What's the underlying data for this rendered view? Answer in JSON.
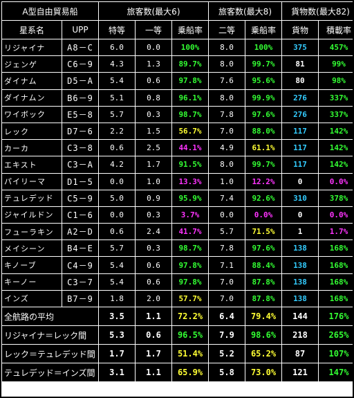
{
  "title": "A型自由貿易船",
  "groups": {
    "passenger1": "旅客数(最大6)",
    "passenger2": "旅客数(最大8)",
    "cargo": "貨物数(最大82)"
  },
  "headers": {
    "system": "星系名",
    "upp": "UPP",
    "special": "特等",
    "first": "一等",
    "rate1": "乗船率",
    "second": "二等",
    "rate2": "乗船率",
    "cargo": "貨物",
    "loadrate": "積載率"
  },
  "colors": {
    "green": "#33ff33",
    "yellow": "#ffff33",
    "magenta": "#ff33ff",
    "cyan": "#33ccff"
  },
  "rows": [
    {
      "name": "リジャイナ",
      "upp": "A8－C",
      "special": "6.0",
      "first": "0.0",
      "rate1": "100%",
      "rate1_color": "g",
      "second": "8.0",
      "rate2": "100%",
      "rate2_color": "g",
      "cargo": "375",
      "cargo_color": "cy",
      "load": "457%",
      "load_color": "g"
    },
    {
      "name": "ジェンゲ",
      "upp": "C6－9",
      "special": "4.3",
      "first": "1.3",
      "rate1": "89.7%",
      "rate1_color": "g",
      "second": "8.0",
      "rate2": "99.7%",
      "rate2_color": "g",
      "cargo": "81",
      "cargo_color": "w",
      "load": "99%",
      "load_color": "g"
    },
    {
      "name": "ダイナム",
      "upp": "D5－A",
      "special": "5.4",
      "first": "0.6",
      "rate1": "97.8%",
      "rate1_color": "g",
      "second": "7.6",
      "rate2": "95.6%",
      "rate2_color": "g",
      "cargo": "80",
      "cargo_color": "w",
      "load": "98%",
      "load_color": "g"
    },
    {
      "name": "ダイナムン",
      "upp": "B6－9",
      "special": "5.1",
      "first": "0.8",
      "rate1": "96.1%",
      "rate1_color": "g",
      "second": "8.0",
      "rate2": "99.9%",
      "rate2_color": "g",
      "cargo": "276",
      "cargo_color": "cy",
      "load": "337%",
      "load_color": "g"
    },
    {
      "name": "ワイボック",
      "upp": "E5－8",
      "special": "5.7",
      "first": "0.3",
      "rate1": "98.7%",
      "rate1_color": "g",
      "second": "7.8",
      "rate2": "97.6%",
      "rate2_color": "g",
      "cargo": "276",
      "cargo_color": "cy",
      "load": "337%",
      "load_color": "g"
    },
    {
      "name": "レック",
      "upp": "D7－6",
      "special": "2.2",
      "first": "1.5",
      "rate1": "56.7%",
      "rate1_color": "y",
      "second": "7.0",
      "rate2": "88.0%",
      "rate2_color": "g",
      "cargo": "117",
      "cargo_color": "cy",
      "load": "142%",
      "load_color": "g"
    },
    {
      "name": "カーカ",
      "upp": "C3－8",
      "special": "0.6",
      "first": "2.5",
      "rate1": "44.1%",
      "rate1_color": "m",
      "second": "4.9",
      "rate2": "61.1%",
      "rate2_color": "y",
      "cargo": "117",
      "cargo_color": "cy",
      "load": "142%",
      "load_color": "g"
    },
    {
      "name": "エキスト",
      "upp": "C3－A",
      "special": "4.2",
      "first": "1.7",
      "rate1": "91.5%",
      "rate1_color": "g",
      "second": "8.0",
      "rate2": "99.7%",
      "rate2_color": "g",
      "cargo": "117",
      "cargo_color": "cy",
      "load": "142%",
      "load_color": "g"
    },
    {
      "name": "パイリーマ",
      "upp": "D1－5",
      "special": "0.0",
      "first": "1.0",
      "rate1": "13.3%",
      "rate1_color": "m",
      "second": "1.0",
      "rate2": "12.2%",
      "rate2_color": "m",
      "cargo": "0",
      "cargo_color": "w",
      "load": "0.0%",
      "load_color": "m"
    },
    {
      "name": "テュレデッド",
      "upp": "C5－9",
      "special": "5.0",
      "first": "0.9",
      "rate1": "95.9%",
      "rate1_color": "g",
      "second": "7.4",
      "rate2": "92.6%",
      "rate2_color": "g",
      "cargo": "310",
      "cargo_color": "cy",
      "load": "378%",
      "load_color": "g"
    },
    {
      "name": "ジャイルドン",
      "upp": "C1－6",
      "special": "0.0",
      "first": "0.3",
      "rate1": "3.7%",
      "rate1_color": "m",
      "second": "0.0",
      "rate2": "0.0%",
      "rate2_color": "m",
      "cargo": "0",
      "cargo_color": "w",
      "load": "0.0%",
      "load_color": "m"
    },
    {
      "name": "フューラキン",
      "upp": "A2－D",
      "special": "0.6",
      "first": "2.4",
      "rate1": "41.7%",
      "rate1_color": "m",
      "second": "5.7",
      "rate2": "71.5%",
      "rate2_color": "y",
      "cargo": "1",
      "cargo_color": "w",
      "load": "1.7%",
      "load_color": "m"
    },
    {
      "name": "メイシーン",
      "upp": "B4－E",
      "special": "5.7",
      "first": "0.3",
      "rate1": "98.7%",
      "rate1_color": "g",
      "second": "7.8",
      "rate2": "97.6%",
      "rate2_color": "g",
      "cargo": "138",
      "cargo_color": "cy",
      "load": "168%",
      "load_color": "g"
    },
    {
      "name": "キノーブ",
      "upp": "C4－9",
      "special": "5.4",
      "first": "0.6",
      "rate1": "97.8%",
      "rate1_color": "g",
      "second": "7.1",
      "rate2": "88.4%",
      "rate2_color": "g",
      "cargo": "138",
      "cargo_color": "cy",
      "load": "168%",
      "load_color": "g"
    },
    {
      "name": "キーノー",
      "upp": "C3－7",
      "special": "5.4",
      "first": "0.6",
      "rate1": "97.8%",
      "rate1_color": "g",
      "second": "7.0",
      "rate2": "87.8%",
      "rate2_color": "g",
      "cargo": "138",
      "cargo_color": "cy",
      "load": "168%",
      "load_color": "g"
    },
    {
      "name": "インズ",
      "upp": "B7－9",
      "special": "1.8",
      "first": "2.0",
      "rate1": "57.7%",
      "rate1_color": "y",
      "second": "7.0",
      "rate2": "87.8%",
      "rate2_color": "g",
      "cargo": "138",
      "cargo_color": "cy",
      "load": "168%",
      "load_color": "g"
    }
  ],
  "summary": [
    {
      "label": "全航路の平均",
      "special": "3.5",
      "first": "1.1",
      "rate1": "72.2%",
      "rate1_color": "y",
      "second": "6.4",
      "rate2": "79.4%",
      "rate2_color": "y",
      "cargo": "144",
      "load": "176%",
      "load_color": "g"
    },
    {
      "label": "リジャイナ＝レック間",
      "special": "5.3",
      "first": "0.6",
      "rate1": "96.5%",
      "rate1_color": "g",
      "second": "7.9",
      "rate2": "98.6%",
      "rate2_color": "g",
      "cargo": "218",
      "load": "265%",
      "load_color": "g"
    },
    {
      "label": "レック＝テュレデッド間",
      "special": "1.7",
      "first": "1.7",
      "rate1": "51.4%",
      "rate1_color": "y",
      "second": "5.2",
      "rate2": "65.2%",
      "rate2_color": "y",
      "cargo": "87",
      "load": "107%",
      "load_color": "g"
    },
    {
      "label": "テュレデッド＝インズ間",
      "special": "3.1",
      "first": "1.1",
      "rate1": "65.9%",
      "rate1_color": "y",
      "second": "5.8",
      "rate2": "73.0%",
      "rate2_color": "y",
      "cargo": "121",
      "load": "147%",
      "load_color": "g"
    }
  ]
}
